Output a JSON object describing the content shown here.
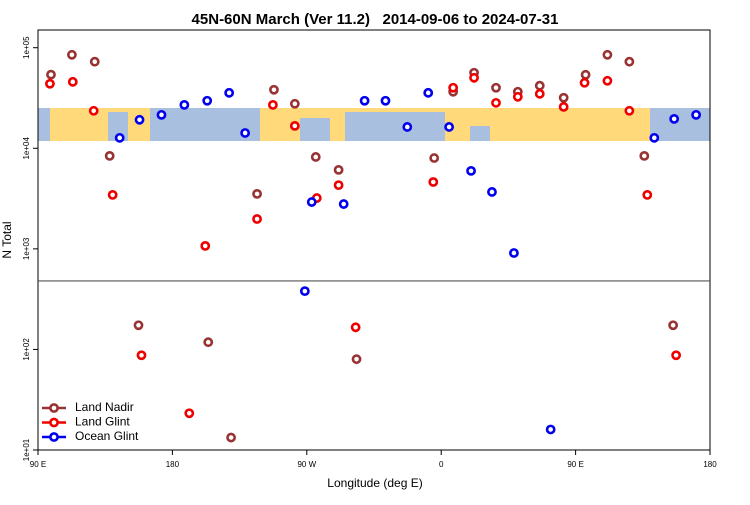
{
  "chart_data": {
    "type": "scatter",
    "title": "45N-60N March (Ver 11.2)   2014-09-06 to 2024-07-31",
    "x_label": "Longitude (deg E)",
    "y_label": "N Total",
    "xlim": [
      90,
      540
    ],
    "ylim": [
      10,
      150000
    ],
    "log_y": true,
    "xticks": [
      {
        "value": 90,
        "label": "90 E"
      },
      {
        "value": 180,
        "label": "180"
      },
      {
        "value": 270,
        "label": "90 W"
      },
      {
        "value": 360,
        "label": "0"
      },
      {
        "value": 450,
        "label": "90 E"
      },
      {
        "value": 540,
        "label": "180"
      }
    ],
    "yticks": [
      {
        "value": 10,
        "label": "1e+01"
      },
      {
        "value": 100,
        "label": "1e+02"
      },
      {
        "value": 1000,
        "label": "1e+03"
      },
      {
        "value": 10000,
        "label": "1e+04"
      },
      {
        "value": 100000,
        "label": "1e+05"
      }
    ],
    "hline": 480,
    "legend": "lower left",
    "series": [
      {
        "name": "Land Nadir",
        "color": "#993333",
        "x": [
          98.7,
          112.7,
          128,
          138,
          157.3,
          204,
          219.3,
          236.7,
          248,
          262,
          276,
          291.3,
          303.3,
          355.3,
          368,
          382,
          396.7,
          411.3,
          426,
          442,
          456.7,
          471.3,
          486,
          496,
          515.3
        ],
        "values": [
          54000,
          85000,
          72600,
          8400,
          174,
          118,
          13.3,
          3520,
          38200,
          27700,
          8200,
          6100,
          80,
          8000,
          36500,
          56400,
          40000,
          36500,
          41900,
          31800,
          53800,
          85000,
          72600,
          8400,
          174
        ]
      },
      {
        "name": "Land Glint",
        "color": "#ee0000",
        "x": [
          98,
          113.3,
          127.3,
          140,
          159.3,
          191.3,
          202,
          236.7,
          247.3,
          262,
          276.7,
          291.3,
          302.7,
          354.7,
          368,
          382,
          396.7,
          411.3,
          426,
          442,
          456,
          471.3,
          486,
          498,
          517.3
        ],
        "values": [
          43800,
          45800,
          23600,
          3440,
          87.5,
          23.2,
          1070,
          1980,
          27000,
          16700,
          3200,
          4300,
          166,
          4620,
          40000,
          50200,
          28300,
          32500,
          34800,
          25800,
          44800,
          46900,
          23600,
          3440,
          87.5
        ]
      },
      {
        "name": "Ocean Glint",
        "color": "#0000ee",
        "x": [
          144.7,
          158,
          172.7,
          188,
          203.3,
          218,
          228.7,
          268.7,
          273.3,
          294.7,
          308.7,
          322.7,
          337.3,
          351.3,
          365.3,
          380,
          394,
          408.7,
          433.3,
          502.7,
          516,
          530.7
        ],
        "values": [
          12700,
          19200,
          21500,
          27000,
          29700,
          35600,
          14200,
          380,
          2920,
          2790,
          29700,
          29700,
          16300,
          35600,
          16300,
          5960,
          3680,
          910,
          16,
          12700,
          19600,
          21500
        ]
      }
    ]
  }
}
